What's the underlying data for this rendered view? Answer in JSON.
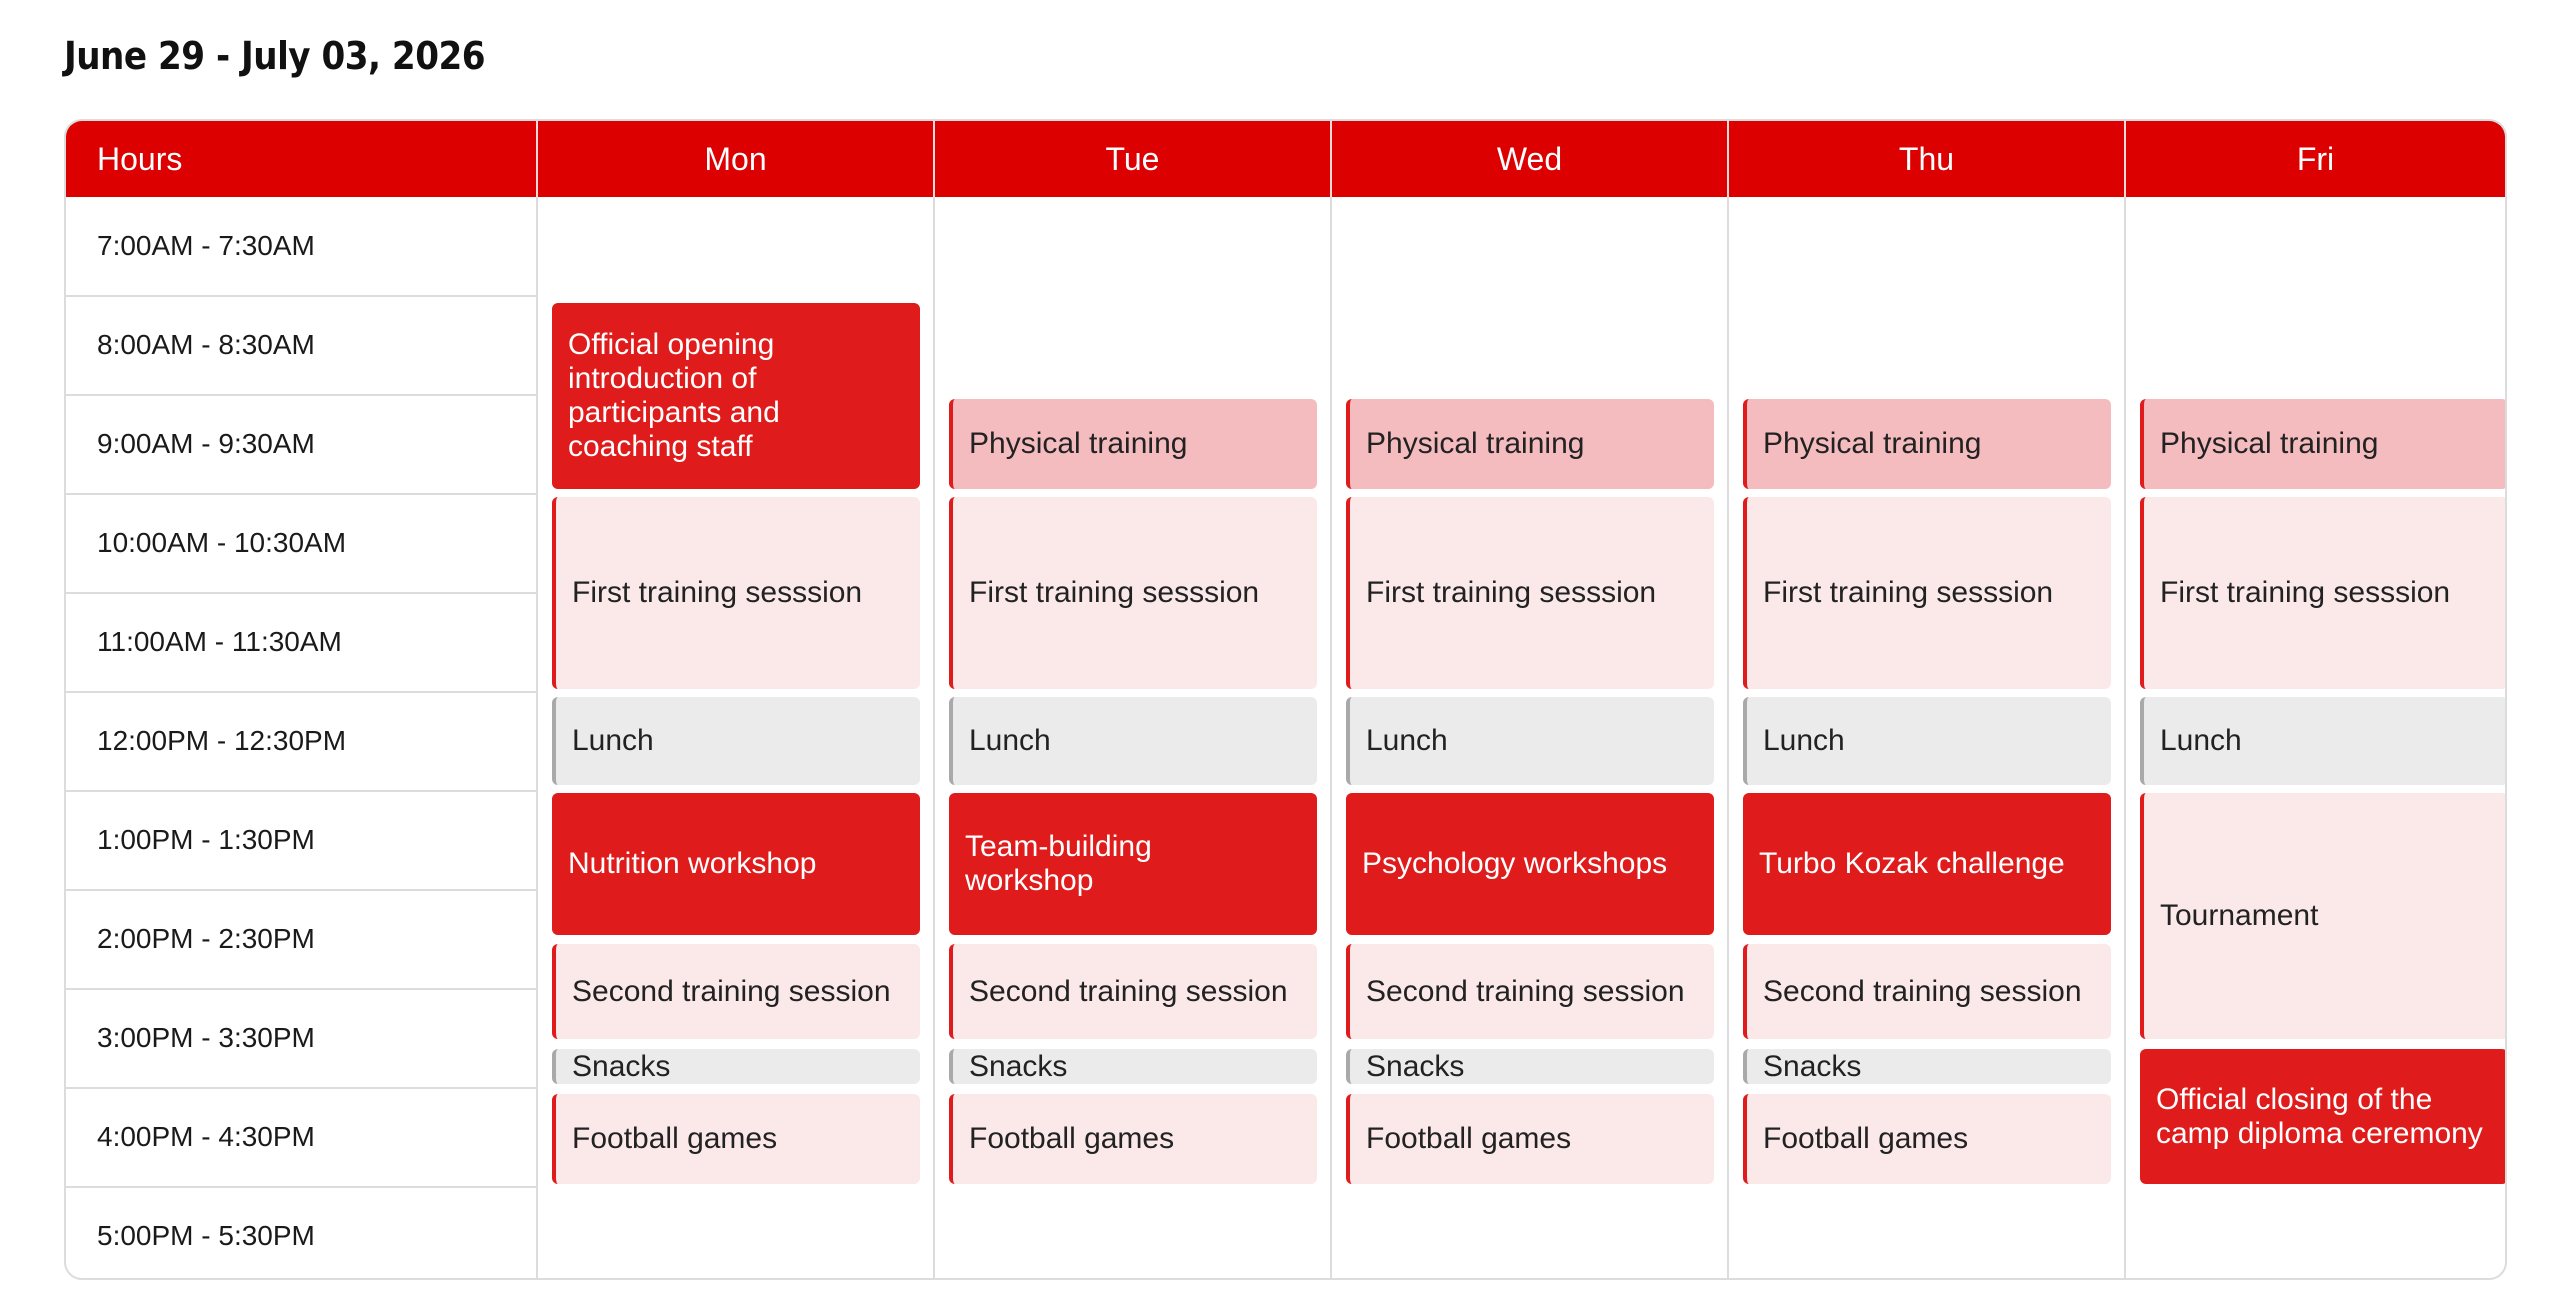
{
  "page": {
    "title": "June 29 - July 03, 2026"
  },
  "header": {
    "hours_label": "Hours",
    "days": [
      "Mon",
      "Tue",
      "Wed",
      "Thu",
      "Fri"
    ]
  },
  "time_slots": [
    "7:00AM - 7:30AM",
    "8:00AM - 8:30AM",
    "9:00AM - 9:30AM",
    "10:00AM - 10:30AM",
    "11:00AM - 11:30AM",
    "12:00PM - 12:30PM",
    "1:00PM - 1:30PM",
    "2:00PM - 2:30PM",
    "3:00PM - 3:30PM",
    "4:00PM - 4:30PM",
    "5:00PM - 5:30PM"
  ],
  "schedule": {
    "mon": {
      "opening": "Official opening introduction of participants and coaching staff",
      "training1": "First training sesssion",
      "lunch": "Lunch",
      "workshop": "Nutrition workshop",
      "training2": "Second training session",
      "snacks": "Snacks",
      "games": "Football games"
    },
    "tue": {
      "physical": "Physical training",
      "training1": "First training sesssion",
      "lunch": "Lunch",
      "workshop": "Team-building workshop",
      "training2": "Second training session",
      "snacks": "Snacks",
      "games": "Football games"
    },
    "wed": {
      "physical": "Physical training",
      "training1": "First training sesssion",
      "lunch": "Lunch",
      "workshop": "Psychology workshops",
      "training2": "Second training session",
      "snacks": "Snacks",
      "games": "Football games"
    },
    "thu": {
      "physical": "Physical training",
      "training1": "First training sesssion",
      "lunch": "Lunch",
      "workshop": "Turbo Kozak challenge",
      "training2": "Second training session",
      "snacks": "Snacks",
      "games": "Football games"
    },
    "fri": {
      "physical": "Physical training",
      "training1": "First training sesssion",
      "lunch": "Lunch",
      "tournament": "Tournament",
      "closing": "Official closing of the camp diploma ceremony"
    }
  },
  "colors": {
    "header_red": "#dc0000",
    "event_red": "#e01b1b",
    "event_pink": "#f5bcbf",
    "event_pale": "#fbe9ea",
    "event_gray": "#ebebeb",
    "border": "#dcdcdc"
  }
}
